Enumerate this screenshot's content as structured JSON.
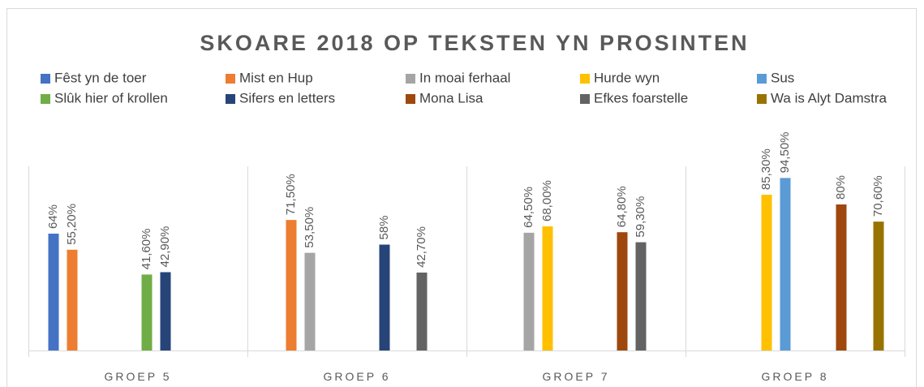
{
  "chart_data": {
    "type": "bar",
    "title": "SKOARE 2018 OP TEKSTEN YN PROSINTEN",
    "categories": [
      "GROEP 5",
      "GROEP 6",
      "GROEP 7",
      "GROEP 8"
    ],
    "ylim": [
      0,
      100
    ],
    "series": [
      {
        "name": "Fêst yn de toer",
        "color": "#4472c4",
        "values": [
          64,
          null,
          null,
          null
        ],
        "value_labels": [
          "64%",
          null,
          null,
          null
        ]
      },
      {
        "name": "Mist en Hup",
        "color": "#ed7d31",
        "values": [
          55.2,
          71.5,
          null,
          null
        ],
        "value_labels": [
          "55,20%",
          "71,50%",
          null,
          null
        ]
      },
      {
        "name": "In moai ferhaal",
        "color": "#a5a5a5",
        "values": [
          null,
          53.5,
          64.5,
          null
        ],
        "value_labels": [
          null,
          "53,50%",
          "64,50%",
          null
        ]
      },
      {
        "name": "Hurde wyn",
        "color": "#ffc000",
        "values": [
          null,
          null,
          68,
          85.3
        ],
        "value_labels": [
          null,
          null,
          "68,00%",
          "85,30%"
        ]
      },
      {
        "name": "Sus",
        "color": "#5b9bd5",
        "values": [
          null,
          null,
          null,
          94.5
        ],
        "value_labels": [
          null,
          null,
          null,
          "94,50%"
        ]
      },
      {
        "name": "Slûk hier of krollen",
        "color": "#70ad47",
        "values": [
          41.6,
          null,
          null,
          null
        ],
        "value_labels": [
          "41,60%",
          null,
          null,
          null
        ]
      },
      {
        "name": "Sifers en letters",
        "color": "#264478",
        "values": [
          42.9,
          58,
          null,
          null
        ],
        "value_labels": [
          "42,90%",
          "58%",
          null,
          null
        ]
      },
      {
        "name": "Mona Lisa",
        "color": "#9e480e",
        "values": [
          null,
          null,
          64.8,
          80
        ],
        "value_labels": [
          null,
          null,
          "64,80%",
          "80%"
        ]
      },
      {
        "name": "Efkes foarstelle",
        "color": "#636363",
        "values": [
          null,
          42.7,
          59.3,
          null
        ],
        "value_labels": [
          null,
          "42,70%",
          "59,30%",
          null
        ]
      },
      {
        "name": "Wa is Alyt Damstra",
        "color": "#997300",
        "values": [
          null,
          null,
          null,
          70.6
        ],
        "value_labels": [
          null,
          null,
          null,
          "70,60%"
        ]
      }
    ]
  }
}
